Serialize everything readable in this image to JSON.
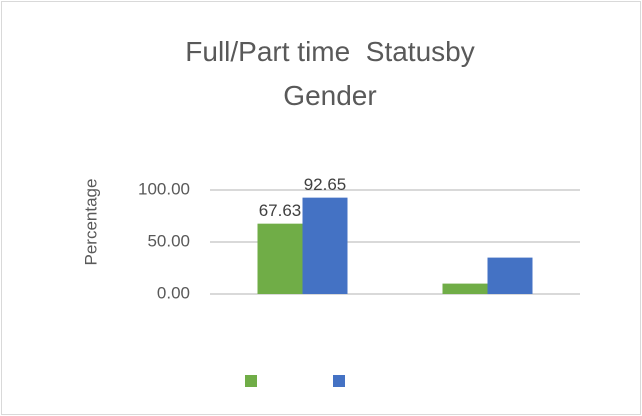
{
  "chart_data": {
    "type": "bar",
    "title": "Full/Part time  Statusby Gender",
    "y_label": "Percentage",
    "categories": [
      null,
      null
    ],
    "series": [
      {
        "name": null,
        "color": "#70ad47",
        "values": [
          67.63,
          10
        ],
        "value_labels": [
          "67.63",
          null
        ]
      },
      {
        "name": null,
        "color": "#4472c4",
        "values": [
          92.65,
          35
        ],
        "value_labels": [
          "92.65",
          null
        ]
      }
    ],
    "ylim": [
      0,
      150
    ],
    "yticks": [
      {
        "value": 0,
        "label": "0.00"
      },
      {
        "value": 50,
        "label": "50.00"
      },
      {
        "value": 100,
        "label": "100.00"
      }
    ],
    "grid": true,
    "legend": "bottom"
  }
}
